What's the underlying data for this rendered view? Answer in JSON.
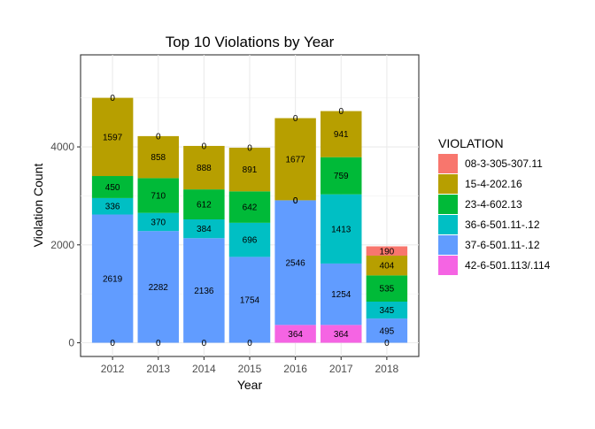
{
  "chart_data": {
    "type": "bar",
    "stacked": true,
    "title": "Top 10 Violations by Year",
    "xlabel": "Year",
    "ylabel": "Violation Count",
    "categories": [
      "2012",
      "2013",
      "2014",
      "2015",
      "2016",
      "2017",
      "2018"
    ],
    "y_ticks": [
      0,
      2000,
      4000
    ],
    "ylim": [
      -280,
      5880
    ],
    "grid": true,
    "legend": {
      "title": "VIOLATION",
      "position": "right"
    },
    "series": [
      {
        "name": "42-6-501.113/.114",
        "color": "#F564E3",
        "values": [
          0,
          0,
          0,
          0,
          364,
          364,
          0
        ]
      },
      {
        "name": "37-6-501.11-.12",
        "color": "#619CFF",
        "values": [
          2619,
          2282,
          2136,
          1754,
          2546,
          1254,
          495
        ]
      },
      {
        "name": "36-6-501.11-.12",
        "color": "#00BFC4",
        "values": [
          336,
          370,
          384,
          696,
          0,
          1413,
          345
        ]
      },
      {
        "name": "23-4-602.13",
        "color": "#00BA38",
        "values": [
          450,
          710,
          612,
          642,
          0,
          759,
          535
        ]
      },
      {
        "name": "15-4-202.16",
        "color": "#B79F00",
        "values": [
          1597,
          858,
          888,
          891,
          1677,
          941,
          404
        ]
      },
      {
        "name": "08-3-305-307.11",
        "color": "#F8766D",
        "values": [
          0,
          0,
          0,
          0,
          0,
          0,
          190
        ]
      }
    ],
    "data_labels": [
      [
        "0",
        "2619",
        "336",
        "450",
        "1597",
        "0"
      ],
      [
        "0",
        "2282",
        "370",
        "710",
        "858",
        "0"
      ],
      [
        "0",
        "2136",
        "384",
        "612",
        "888",
        "0"
      ],
      [
        "0",
        "1754",
        "696",
        "642",
        "891",
        "0"
      ],
      [
        "364",
        "2546",
        "0",
        "0",
        "1677",
        "0"
      ],
      [
        "364",
        "1254",
        "1413",
        "759",
        "941",
        "0"
      ],
      [
        "0",
        "495",
        "345",
        "535",
        "404",
        "190"
      ]
    ],
    "legend_order": [
      "08-3-305-307.11",
      "15-4-202.16",
      "23-4-602.13",
      "36-6-501.11-.12",
      "37-6-501.11-.12",
      "42-6-501.113/.114"
    ]
  }
}
